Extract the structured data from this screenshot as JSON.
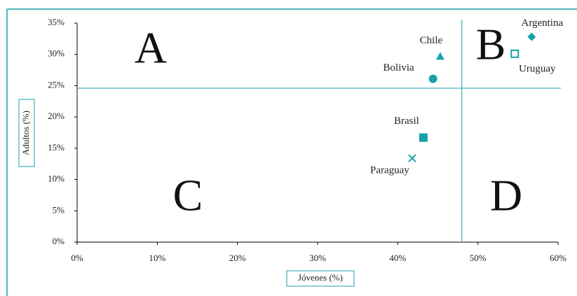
{
  "chart_data": {
    "type": "scatter",
    "xlabel": "Jóvenes (%)",
    "ylabel": "Adultos (%)",
    "color": "#17a2a8",
    "xlim": [
      0,
      60
    ],
    "xticks": [
      {
        "value": 0,
        "label": "0%"
      },
      {
        "value": 10,
        "label": "10%"
      },
      {
        "value": 20,
        "label": "20%"
      },
      {
        "value": 30,
        "label": "30%"
      },
      {
        "value": 40,
        "label": "40%"
      },
      {
        "value": 50,
        "label": "50%"
      },
      {
        "value": 60,
        "label": "60%"
      }
    ],
    "ylim": [
      0,
      35
    ],
    "yticks": [
      {
        "value": 0,
        "label": "0%"
      },
      {
        "value": 5,
        "label": "5%"
      },
      {
        "value": 10,
        "label": "10%"
      },
      {
        "value": 15,
        "label": "15%"
      },
      {
        "value": 20,
        "label": "20%"
      },
      {
        "value": 25,
        "label": "25%"
      },
      {
        "value": 30,
        "label": "30%"
      },
      {
        "value": 35,
        "label": "35%"
      }
    ],
    "quadrant_lines": {
      "x": 48,
      "y": 24.6
    },
    "quadrants": [
      "A",
      "B",
      "C",
      "D"
    ],
    "series": [
      {
        "name": "Argentina",
        "marker": "diamond",
        "x": [
          56.7
        ],
        "values": [
          32.8
        ]
      },
      {
        "name": "Uruguay",
        "marker": "square-open",
        "x": [
          54.6
        ],
        "values": [
          30.1
        ]
      },
      {
        "name": "Chile",
        "marker": "triangle",
        "x": [
          45.3
        ],
        "values": [
          29.7
        ]
      },
      {
        "name": "Bolivia",
        "marker": "circle",
        "x": [
          44.4
        ],
        "values": [
          26.1
        ]
      },
      {
        "name": "Brasil",
        "marker": "square",
        "x": [
          43.2
        ],
        "values": [
          16.7
        ]
      },
      {
        "name": "Paraguay",
        "marker": "x",
        "x": [
          41.8
        ],
        "values": [
          13.4
        ]
      }
    ]
  }
}
